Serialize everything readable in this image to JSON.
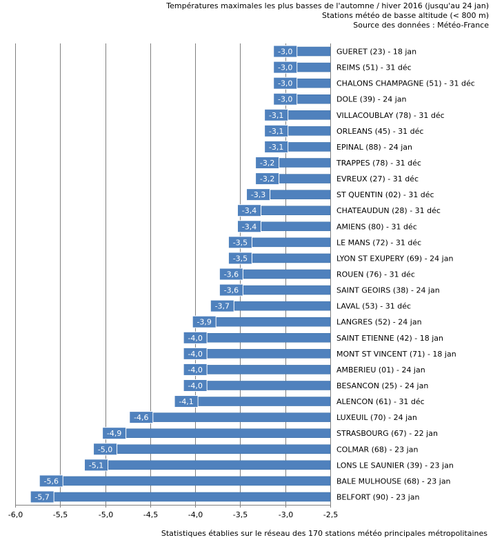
{
  "header": {
    "line1": "Températures maximales les plus basses de l'automne / hiver 2016 (jusqu'au 24 jan)",
    "line2": "Stations météo de basse altitude (< 800 m)",
    "line3": "Source des données : Météo-France"
  },
  "footer": {
    "text": "Statistiques établies sur le réseau des 170 stations météo principales métropolitaines"
  },
  "colors": {
    "bar": "#4f81bd",
    "bar_edge": "#3a6ea5",
    "label_box": "#4f81bd",
    "grid": "#7f7f7f"
  },
  "chart_data": {
    "type": "bar",
    "orientation": "horizontal",
    "title": "Températures maximales les plus basses de l'automne / hiver 2016 (jusqu'au 24 jan)",
    "xlabel": "",
    "ylabel": "",
    "xlim": [
      -6.0,
      -2.5
    ],
    "xticks": [
      -6.0,
      -5.5,
      -5.0,
      -4.5,
      -4.0,
      -3.5,
      -3.0,
      -2.5
    ],
    "xtick_labels": [
      "-6,0",
      "-5,5",
      "-5,0",
      "-4,5",
      "-4,0",
      "-3,5",
      "-3,0",
      "-2,5"
    ],
    "grid": true,
    "categories": [
      "GUERET (23) - 18 jan",
      "REIMS (51) - 31 déc",
      "CHALONS CHAMPAGNE (51) - 31 déc",
      "DOLE (39) - 24 jan",
      "VILLACOUBLAY (78) - 31 déc",
      "ORLEANS (45) - 31 déc",
      "EPINAL (88) - 24 jan",
      "TRAPPES (78) - 31 déc",
      "EVREUX (27) - 31 déc",
      "ST QUENTIN (02) - 31 déc",
      "CHATEAUDUN (28) - 31 déc",
      "AMIENS (80) - 31 déc",
      "LE MANS (72) - 31 déc",
      "LYON ST EXUPERY (69) - 24 jan",
      "ROUEN (76) - 31 déc",
      "SAINT GEOIRS (38) - 24 jan",
      "LAVAL (53) - 31 déc",
      "LANGRES (52) - 24 jan",
      "SAINT ETIENNE (42) - 18 jan",
      "MONT ST VINCENT (71) - 18 jan",
      "AMBERIEU (01) - 24 jan",
      "BESANCON (25) - 24 jan",
      "ALENCON (61) - 31 déc",
      "LUXEUIL (70) - 24 jan",
      "STRASBOURG (67) - 22 jan",
      "COLMAR (68) - 23 jan",
      "LONS LE SAUNIER (39) - 23 jan",
      "BALE MULHOUSE (68) - 23 jan",
      "BELFORT (90) - 23 jan"
    ],
    "values": [
      -3.0,
      -3.0,
      -3.0,
      -3.0,
      -3.1,
      -3.1,
      -3.1,
      -3.2,
      -3.2,
      -3.3,
      -3.4,
      -3.4,
      -3.5,
      -3.5,
      -3.6,
      -3.6,
      -3.7,
      -3.9,
      -4.0,
      -4.0,
      -4.0,
      -4.0,
      -4.1,
      -4.6,
      -4.9,
      -5.0,
      -5.1,
      -5.6,
      -5.7
    ],
    "data_labels": [
      "-3,0",
      "-3,0",
      "-3,0",
      "-3,0",
      "-3,1",
      "-3,1",
      "-3,1",
      "-3,2",
      "-3,2",
      "-3,3",
      "-3,4",
      "-3,4",
      "-3,5",
      "-3,5",
      "-3,6",
      "-3,6",
      "-3,7",
      "-3,9",
      "-4,0",
      "-4,0",
      "-4,0",
      "-4,0",
      "-4,1",
      "-4,6",
      "-4,9",
      "-5,0",
      "-5,1",
      "-5,6",
      "-5,7"
    ]
  }
}
